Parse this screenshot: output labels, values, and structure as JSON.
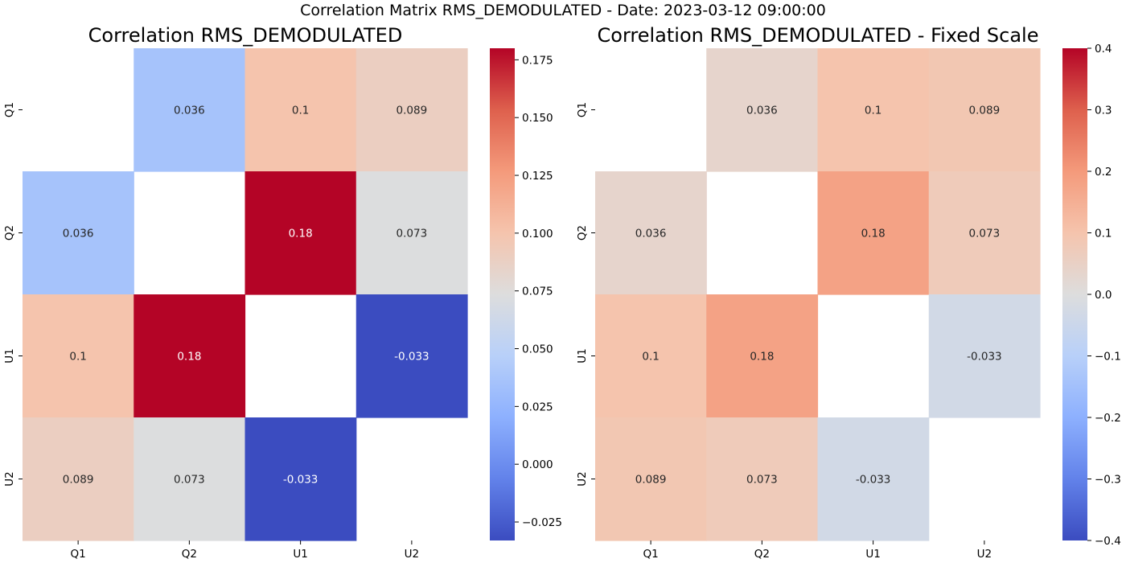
{
  "suptitle": "Correlation Matrix RMS_DEMODULATED - Date: 2023-03-12 09:00:00",
  "chart_data": [
    {
      "type": "heatmap",
      "title": "Correlation RMS_DEMODULATED",
      "x_categories": [
        "Q1",
        "Q2",
        "U1",
        "U2"
      ],
      "y_categories": [
        "Q1",
        "Q2",
        "U1",
        "U2"
      ],
      "matrix": [
        [
          null,
          0.036,
          0.1,
          0.089
        ],
        [
          0.036,
          null,
          0.18,
          0.073
        ],
        [
          0.1,
          0.18,
          null,
          -0.033
        ],
        [
          0.089,
          0.073,
          -0.033,
          null
        ]
      ],
      "cell_labels": [
        [
          "",
          "0.036",
          "0.1",
          "0.089"
        ],
        [
          "0.036",
          "",
          "0.18",
          "0.073"
        ],
        [
          "0.1",
          "0.18",
          "",
          "-0.033"
        ],
        [
          "0.089",
          "0.073",
          "-0.033",
          ""
        ]
      ],
      "colormap": "coolwarm",
      "vmin": -0.033,
      "vmax": 0.18,
      "colorbar_ticks": [
        -0.025,
        0.0,
        0.025,
        0.05,
        0.075,
        0.1,
        0.125,
        0.15,
        0.175
      ],
      "colorbar_tick_labels": [
        "−0.025",
        "0.000",
        "0.025",
        "0.050",
        "0.075",
        "0.100",
        "0.125",
        "0.150",
        "0.175"
      ]
    },
    {
      "type": "heatmap",
      "title": "Correlation RMS_DEMODULATED - Fixed Scale",
      "x_categories": [
        "Q1",
        "Q2",
        "U1",
        "U2"
      ],
      "y_categories": [
        "Q1",
        "Q2",
        "U1",
        "U2"
      ],
      "matrix": [
        [
          null,
          0.036,
          0.1,
          0.089
        ],
        [
          0.036,
          null,
          0.18,
          0.073
        ],
        [
          0.1,
          0.18,
          null,
          -0.033
        ],
        [
          0.089,
          0.073,
          -0.033,
          null
        ]
      ],
      "cell_labels": [
        [
          "",
          "0.036",
          "0.1",
          "0.089"
        ],
        [
          "0.036",
          "",
          "0.18",
          "0.073"
        ],
        [
          "0.1",
          "0.18",
          "",
          "-0.033"
        ],
        [
          "0.089",
          "0.073",
          "-0.033",
          ""
        ]
      ],
      "colormap": "coolwarm",
      "vmin": -0.4,
      "vmax": 0.4,
      "colorbar_ticks": [
        -0.4,
        -0.3,
        -0.2,
        -0.1,
        0.0,
        0.1,
        0.2,
        0.3,
        0.4
      ],
      "colorbar_tick_labels": [
        "−0.4",
        "−0.3",
        "−0.2",
        "−0.1",
        "0.0",
        "0.1",
        "0.2",
        "0.3",
        "0.4"
      ]
    }
  ]
}
